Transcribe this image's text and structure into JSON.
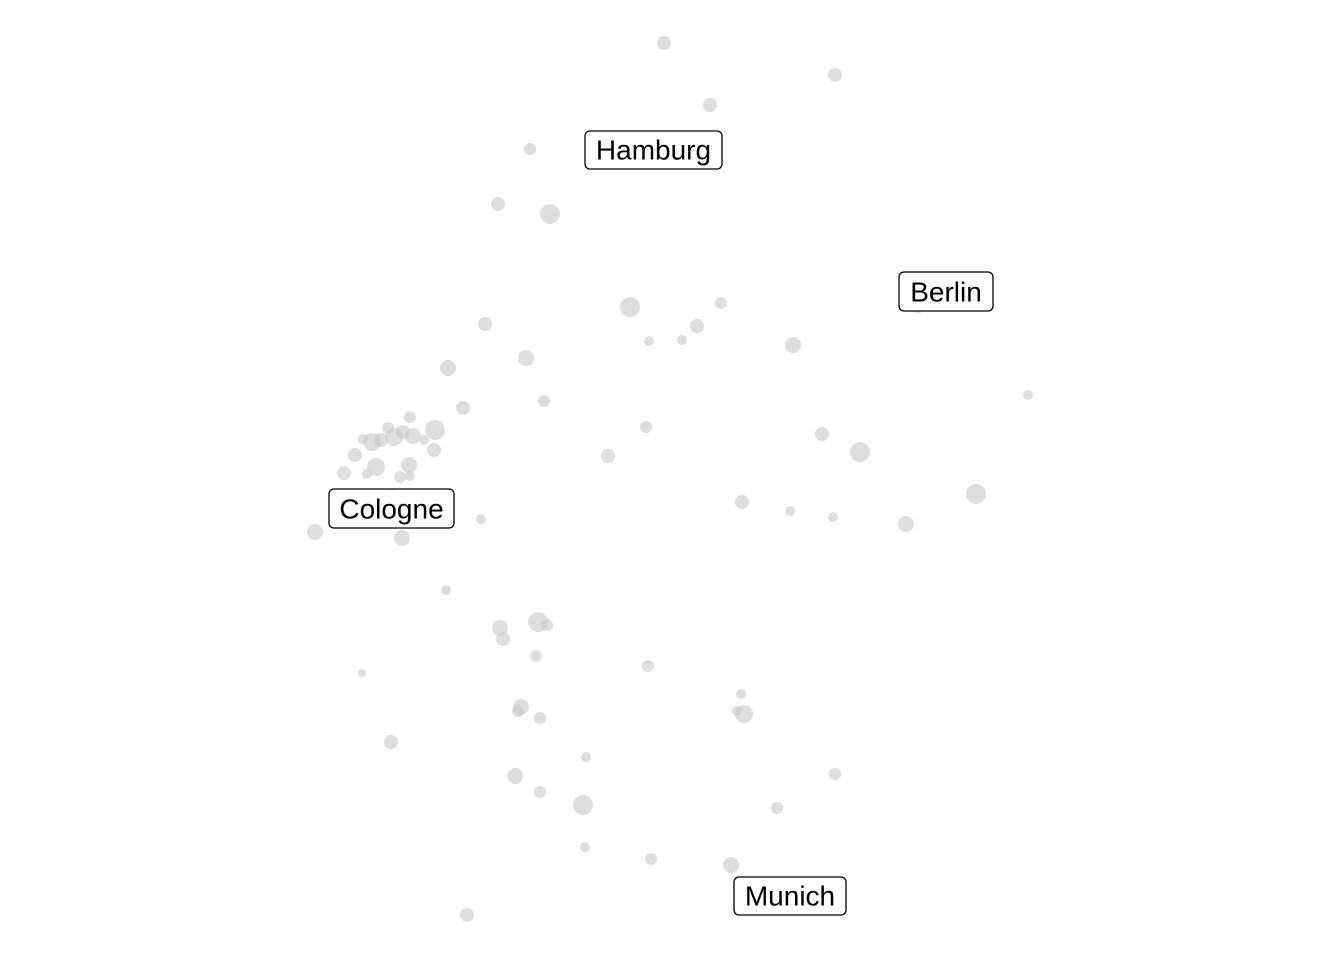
{
  "map": {
    "point_color": "#c8c8c8",
    "labels": [
      {
        "id": "hamburg",
        "text": "Hamburg"
      },
      {
        "id": "berlin",
        "text": "Berlin"
      },
      {
        "id": "cologne",
        "text": "Cologne"
      },
      {
        "id": "munich",
        "text": "Munich"
      }
    ]
  }
}
